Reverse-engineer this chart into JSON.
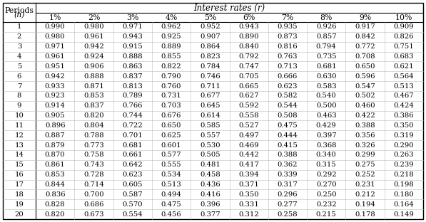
{
  "title": "Interest rates (r)",
  "col_header": [
    "1%",
    "2%",
    "3%",
    "4%",
    "5%",
    "6%",
    "7%",
    "8%",
    "9%",
    "10%"
  ],
  "row_header_label1": "Periods",
  "row_header_label2": "(n)",
  "rows": [
    [
      1,
      0.99,
      0.98,
      0.971,
      0.962,
      0.952,
      0.943,
      0.935,
      0.926,
      0.917,
      0.909
    ],
    [
      2,
      0.98,
      0.961,
      0.943,
      0.925,
      0.907,
      0.89,
      0.873,
      0.857,
      0.842,
      0.826
    ],
    [
      3,
      0.971,
      0.942,
      0.915,
      0.889,
      0.864,
      0.84,
      0.816,
      0.794,
      0.772,
      0.751
    ],
    [
      4,
      0.961,
      0.924,
      0.888,
      0.855,
      0.823,
      0.792,
      0.763,
      0.735,
      0.708,
      0.683
    ],
    [
      5,
      0.951,
      0.906,
      0.863,
      0.822,
      0.784,
      0.747,
      0.713,
      0.681,
      0.65,
      0.621
    ],
    [
      6,
      0.942,
      0.888,
      0.837,
      0.79,
      0.746,
      0.705,
      0.666,
      0.63,
      0.596,
      0.564
    ],
    [
      7,
      0.933,
      0.871,
      0.813,
      0.76,
      0.711,
      0.665,
      0.623,
      0.583,
      0.547,
      0.513
    ],
    [
      8,
      0.923,
      0.853,
      0.789,
      0.731,
      0.677,
      0.627,
      0.582,
      0.54,
      0.502,
      0.467
    ],
    [
      9,
      0.914,
      0.837,
      0.766,
      0.703,
      0.645,
      0.592,
      0.544,
      0.5,
      0.46,
      0.424
    ],
    [
      10,
      0.905,
      0.82,
      0.744,
      0.676,
      0.614,
      0.558,
      0.508,
      0.463,
      0.422,
      0.386
    ],
    [
      11,
      0.896,
      0.804,
      0.722,
      0.65,
      0.585,
      0.527,
      0.475,
      0.429,
      0.388,
      0.35
    ],
    [
      12,
      0.887,
      0.788,
      0.701,
      0.625,
      0.557,
      0.497,
      0.444,
      0.397,
      0.356,
      0.319
    ],
    [
      13,
      0.879,
      0.773,
      0.681,
      0.601,
      0.53,
      0.469,
      0.415,
      0.368,
      0.326,
      0.29
    ],
    [
      14,
      0.87,
      0.758,
      0.661,
      0.577,
      0.505,
      0.442,
      0.388,
      0.34,
      0.299,
      0.263
    ],
    [
      15,
      0.861,
      0.743,
      0.642,
      0.555,
      0.481,
      0.417,
      0.362,
      0.315,
      0.275,
      0.239
    ],
    [
      16,
      0.853,
      0.728,
      0.623,
      0.534,
      0.458,
      0.394,
      0.339,
      0.292,
      0.252,
      0.218
    ],
    [
      17,
      0.844,
      0.714,
      0.605,
      0.513,
      0.436,
      0.371,
      0.317,
      0.27,
      0.231,
      0.198
    ],
    [
      18,
      0.836,
      0.7,
      0.587,
      0.494,
      0.416,
      0.35,
      0.296,
      0.25,
      0.212,
      0.18
    ],
    [
      19,
      0.828,
      0.686,
      0.57,
      0.475,
      0.396,
      0.331,
      0.277,
      0.232,
      0.194,
      0.164
    ],
    [
      20,
      0.82,
      0.673,
      0.554,
      0.456,
      0.377,
      0.312,
      0.258,
      0.215,
      0.178,
      0.149
    ]
  ],
  "bg_color": "#ffffff",
  "font_size": 7.2,
  "header_font_size": 7.8,
  "title_font_size": 8.5
}
